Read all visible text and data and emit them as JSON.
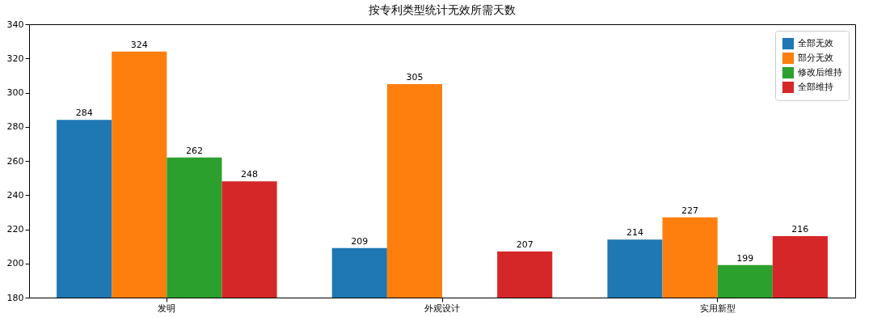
{
  "chart_data": {
    "type": "bar",
    "title": "按专利类型统计无效所需天数",
    "categories": [
      "发明",
      "外观设计",
      "实用新型"
    ],
    "series": [
      {
        "name": "全部无效",
        "color": "#1f77b4",
        "values": [
          284,
          209,
          214
        ]
      },
      {
        "name": "部分无效",
        "color": "#ff7f0e",
        "values": [
          324,
          305,
          227
        ]
      },
      {
        "name": "修改后维持",
        "color": "#2ca02c",
        "values": [
          262,
          null,
          199
        ]
      },
      {
        "name": "全部维持",
        "color": "#d62728",
        "values": [
          248,
          207,
          216
        ]
      }
    ],
    "ylim": [
      180,
      340
    ],
    "yticks": [
      180,
      200,
      220,
      240,
      260,
      280,
      300,
      320,
      340
    ],
    "grid": false,
    "legend": "top right",
    "data_labels": true
  }
}
